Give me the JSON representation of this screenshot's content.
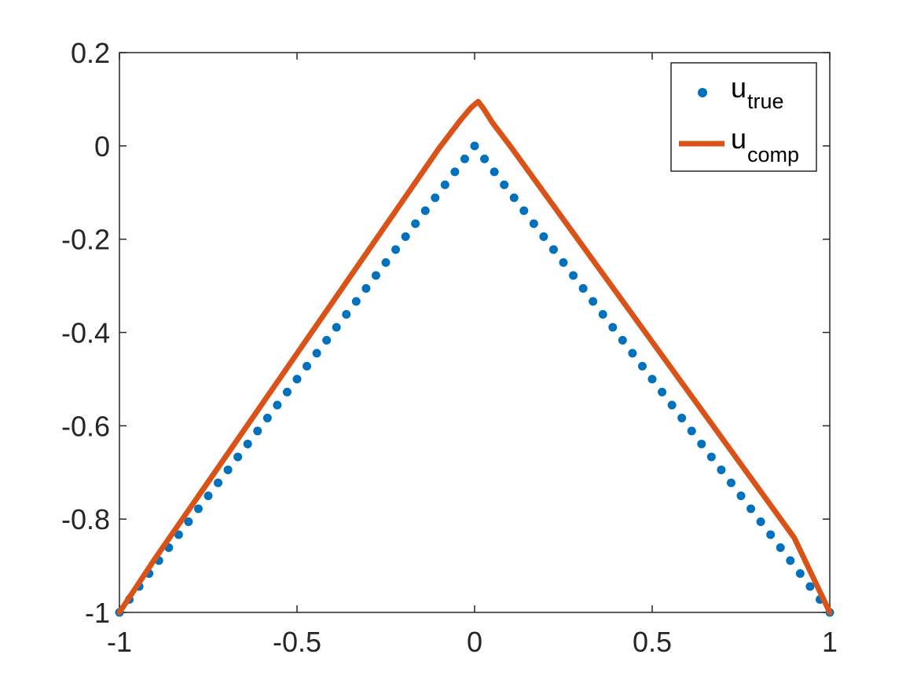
{
  "chart_data": {
    "type": "line",
    "title": "",
    "xlabel": "",
    "ylabel": "",
    "xlim": [
      -1,
      1
    ],
    "ylim": [
      -1,
      0.2
    ],
    "xticks": [
      -1,
      -0.5,
      0,
      0.5,
      1
    ],
    "xtick_labels": [
      "-1",
      "-0.5",
      "0",
      "0.5",
      "1"
    ],
    "yticks": [
      -1,
      -0.8,
      -0.6,
      -0.4,
      -0.2,
      0,
      0.2
    ],
    "ytick_labels": [
      "-1",
      "-0.8",
      "-0.6",
      "-0.4",
      "-0.2",
      "0",
      "0.2"
    ],
    "grid": false,
    "legend_position": "top-right",
    "series": [
      {
        "name": "u_true",
        "legend_main": "u",
        "legend_sub": "true",
        "style": "markers",
        "color": "#0072BD",
        "x_range": [
          -1,
          1
        ],
        "n_points": 73,
        "formula": "y = -|x|"
      },
      {
        "name": "u_comp",
        "legend_main": "u",
        "legend_sub": "comp",
        "style": "line",
        "color": "#D95319",
        "x": [
          -1,
          -0.9,
          -0.8,
          -0.7,
          -0.6,
          -0.5,
          -0.4,
          -0.3,
          -0.2,
          -0.1,
          -0.04,
          -0.01,
          0.01,
          0.025,
          0.05,
          0.1,
          0.2,
          0.3,
          0.4,
          0.5,
          0.6,
          0.7,
          0.8,
          0.9,
          1
        ],
        "y": [
          -1,
          -0.885,
          -0.775,
          -0.665,
          -0.555,
          -0.445,
          -0.335,
          -0.225,
          -0.115,
          -0.005,
          0.055,
          0.082,
          0.095,
          0.08,
          0.05,
          0.0,
          -0.105,
          -0.21,
          -0.315,
          -0.42,
          -0.525,
          -0.63,
          -0.735,
          -0.84,
          -1
        ]
      }
    ]
  }
}
